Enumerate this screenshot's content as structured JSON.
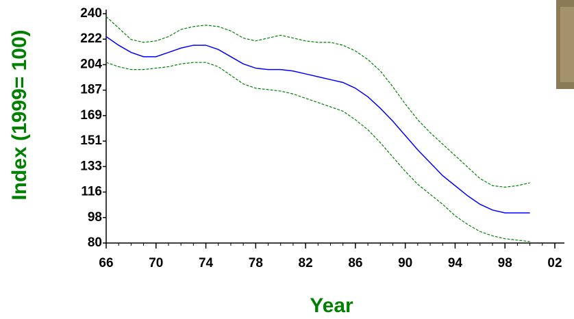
{
  "chart_data": {
    "type": "line",
    "x_label": "Year",
    "y_label": "Index (1999= 100)",
    "x": [
      66,
      67,
      68,
      69,
      70,
      71,
      72,
      73,
      74,
      75,
      76,
      77,
      78,
      79,
      80,
      81,
      82,
      83,
      84,
      85,
      86,
      87,
      88,
      89,
      90,
      91,
      92,
      93,
      94,
      95,
      96,
      97,
      98,
      99,
      100
    ],
    "series": [
      {
        "color": "#008000",
        "dashed": true,
        "values": [
          238,
          230,
          222,
          220,
          221,
          224,
          229,
          231,
          232,
          231,
          228,
          223,
          221,
          223,
          225,
          223,
          221,
          220,
          220,
          218,
          214,
          208,
          200,
          189,
          177,
          166,
          157,
          149,
          141,
          133,
          125,
          120,
          119,
          120,
          122
        ]
      },
      {
        "color": "#0000ff",
        "dashed": false,
        "values": [
          224,
          218,
          213,
          210,
          210,
          213,
          216,
          218,
          218,
          215,
          210,
          205,
          202,
          201,
          201,
          200,
          198,
          196,
          194,
          192,
          188,
          182,
          174,
          165,
          155,
          145,
          136,
          127,
          120,
          113,
          107,
          103,
          101,
          101,
          101
        ]
      },
      {
        "color": "#008000",
        "dashed": true,
        "values": [
          206,
          203,
          201,
          201,
          202,
          203,
          205,
          206,
          206,
          203,
          197,
          191,
          188,
          187,
          186,
          184,
          181,
          178,
          175,
          172,
          166,
          159,
          150,
          140,
          130,
          121,
          114,
          107,
          99,
          93,
          88,
          85,
          83,
          82,
          81
        ]
      }
    ],
    "xlim": [
      66,
      102
    ],
    "xticks": [
      66,
      70,
      74,
      78,
      82,
      86,
      90,
      94,
      98,
      {
        "value": 102,
        "label": "02"
      }
    ],
    "ylim": [
      80,
      240
    ],
    "yticks": [
      80,
      {
        "value": 97.78,
        "label": "98"
      },
      {
        "value": 115.56,
        "label": "116"
      },
      {
        "value": 133.33,
        "label": "133"
      },
      {
        "value": 151.11,
        "label": "151"
      },
      {
        "value": 168.89,
        "label": "169"
      },
      {
        "value": 186.67,
        "label": "187"
      },
      {
        "value": 204.44,
        "label": "204"
      },
      {
        "value": 222.22,
        "label": "222"
      },
      240
    ],
    "grid": false
  }
}
